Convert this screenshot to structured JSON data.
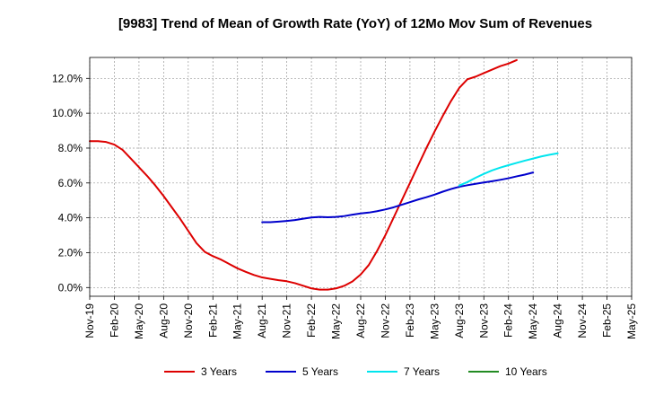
{
  "chart_data": {
    "type": "line",
    "title": "[9983]  Trend of Mean of Growth Rate (YoY) of 12Mo Mov Sum of Revenues",
    "xlabel": "",
    "ylabel": "",
    "ylim": [
      -0.5,
      13.2
    ],
    "yticks": [
      0,
      2,
      4,
      6,
      8,
      10,
      12
    ],
    "ytick_labels": [
      "0.0%",
      "2.0%",
      "4.0%",
      "6.0%",
      "8.0%",
      "10.0%",
      "12.0%"
    ],
    "x_labels": [
      "Nov-19",
      "Feb-20",
      "May-20",
      "Aug-20",
      "Nov-20",
      "Feb-21",
      "May-21",
      "Aug-21",
      "Nov-21",
      "Feb-22",
      "May-22",
      "Aug-22",
      "Nov-22",
      "Feb-23",
      "May-23",
      "Aug-23",
      "Nov-23",
      "Feb-24",
      "May-24",
      "Aug-24",
      "Nov-24",
      "Feb-25",
      "May-25"
    ],
    "x_label_month_index": [
      0,
      3,
      6,
      9,
      12,
      15,
      18,
      21,
      24,
      27,
      30,
      33,
      36,
      39,
      42,
      45,
      48,
      51,
      54,
      57,
      60,
      63,
      66
    ],
    "x_range": [
      0,
      66
    ],
    "grid": true,
    "legend_position": "bottom",
    "series": [
      {
        "name": "3 Years",
        "color": "#dd0000",
        "start_index": 0,
        "values": [
          8.4,
          8.4,
          8.35,
          8.2,
          7.9,
          7.4,
          6.9,
          6.4,
          5.85,
          5.25,
          4.6,
          3.95,
          3.25,
          2.55,
          2.05,
          1.8,
          1.6,
          1.35,
          1.1,
          0.9,
          0.72,
          0.58,
          0.5,
          0.42,
          0.36,
          0.25,
          0.1,
          -0.05,
          -0.12,
          -0.12,
          -0.05,
          0.1,
          0.35,
          0.75,
          1.3,
          2.1,
          3.0,
          4.0,
          5.0,
          6.0,
          7.0,
          8.0,
          8.95,
          9.85,
          10.7,
          11.45,
          11.95,
          12.1,
          12.3,
          12.5,
          12.7,
          12.85,
          13.05
        ]
      },
      {
        "name": "5 Years",
        "color": "#0000cc",
        "start_index": 21,
        "values": [
          3.75,
          3.75,
          3.78,
          3.82,
          3.87,
          3.95,
          4.02,
          4.05,
          4.03,
          4.05,
          4.1,
          4.18,
          4.25,
          4.3,
          4.38,
          4.48,
          4.6,
          4.75,
          4.9,
          5.05,
          5.18,
          5.33,
          5.5,
          5.65,
          5.78,
          5.87,
          5.95,
          6.03,
          6.1,
          6.18,
          6.27,
          6.38,
          6.48,
          6.6
        ]
      },
      {
        "name": "7 Years",
        "color": "#00e5ee",
        "start_index": 45,
        "values": [
          5.85,
          6.05,
          6.3,
          6.52,
          6.72,
          6.88,
          7.02,
          7.15,
          7.28,
          7.4,
          7.52,
          7.62,
          7.7
        ]
      },
      {
        "name": "10 Years",
        "color": "#228b22",
        "start_index": 0,
        "values": []
      }
    ]
  }
}
